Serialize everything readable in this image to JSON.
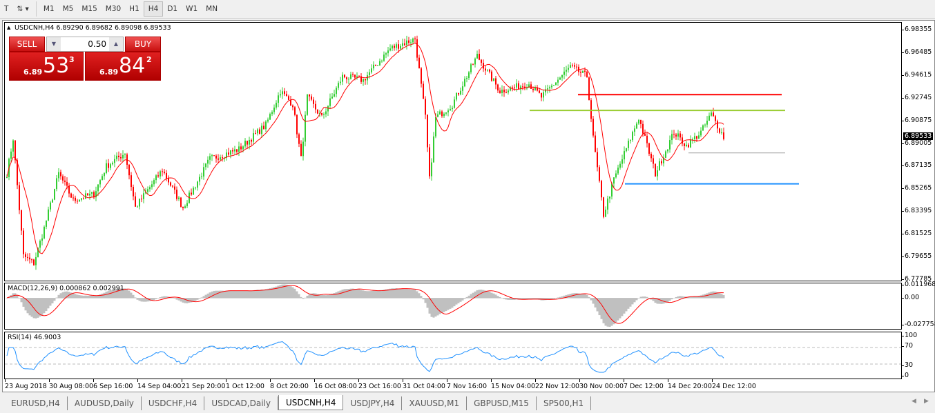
{
  "toolbar": {
    "timeframes": [
      "M1",
      "M5",
      "M15",
      "M30",
      "H1",
      "H4",
      "D1",
      "W1",
      "MN"
    ],
    "active": "H4"
  },
  "chart": {
    "title": "USDCNH,H4  6.89290 6.89682 6.89098 6.89533",
    "sell_label": "SELL",
    "buy_label": "BUY",
    "volume": "0.50",
    "sell_big": "6.89",
    "sell_main": "53",
    "sell_sup": "3",
    "buy_big": "6.89",
    "buy_main": "84",
    "buy_sup": "2",
    "price_ticks": [
      "6.98355",
      "6.96485",
      "6.94615",
      "6.92745",
      "6.90875",
      "6.89005",
      "6.87135",
      "6.85265",
      "6.83395",
      "6.81525",
      "6.79655",
      "6.77785"
    ],
    "current_price": "6.89533",
    "date_ticks": [
      "23 Aug 2018",
      "30 Aug 08:00",
      "6 Sep 16:00",
      "14 Sep 04:00",
      "21 Sep 20:00",
      "1 Oct 12:00",
      "8 Oct 20:00",
      "16 Oct 08:00",
      "23 Oct 16:00",
      "31 Oct 04:00",
      "7 Nov 16:00",
      "15 Nov 04:00",
      "22 Nov 12:00",
      "30 Nov 00:00",
      "7 Dec 12:00",
      "14 Dec 20:00",
      "24 Dec 12:00"
    ],
    "macd_title": "MACD(12,26,9) 0.000862 0.002991",
    "macd_ticks": [
      "0.011968",
      "0.00",
      "-0.027758"
    ],
    "rsi_title": "RSI(14) 46.9003",
    "rsi_ticks": [
      "100",
      "70",
      "30",
      "0"
    ],
    "colors": {
      "bull": "#32cd32",
      "bear": "#ff0000",
      "ma": "#ff0000",
      "rsi": "#1e90ff",
      "histogram": "#c0c0c0"
    },
    "horizontal_lines": [
      {
        "price": 6.93,
        "color": "#ff0000"
      },
      {
        "price": 6.917,
        "color": "#9acd32"
      },
      {
        "price": 6.882,
        "color": "#a0a0a0"
      },
      {
        "price": 6.8565,
        "color": "#1e90ff"
      }
    ]
  },
  "chart_data": {
    "type": "candlestick",
    "ylim": [
      6.77785,
      6.98355
    ],
    "price_path": [
      [
        0,
        6.865
      ],
      [
        3,
        6.894
      ],
      [
        8,
        6.797
      ],
      [
        13,
        6.791
      ],
      [
        18,
        6.82
      ],
      [
        25,
        6.865
      ],
      [
        32,
        6.843
      ],
      [
        42,
        6.848
      ],
      [
        48,
        6.871
      ],
      [
        57,
        6.882
      ],
      [
        62,
        6.837
      ],
      [
        75,
        6.868
      ],
      [
        85,
        6.837
      ],
      [
        98,
        6.877
      ],
      [
        112,
        6.885
      ],
      [
        125,
        6.905
      ],
      [
        132,
        6.933
      ],
      [
        138,
        6.922
      ],
      [
        142,
        6.877
      ],
      [
        145,
        6.928
      ],
      [
        152,
        6.911
      ],
      [
        162,
        6.945
      ],
      [
        172,
        6.942
      ],
      [
        185,
        6.968
      ],
      [
        197,
        6.976
      ],
      [
        202,
        6.911
      ],
      [
        204,
        6.86
      ],
      [
        207,
        6.911
      ],
      [
        215,
        6.922
      ],
      [
        227,
        6.962
      ],
      [
        238,
        6.933
      ],
      [
        252,
        6.939
      ],
      [
        258,
        6.928
      ],
      [
        272,
        6.953
      ],
      [
        280,
        6.945
      ],
      [
        283,
        6.894
      ],
      [
        288,
        6.831
      ],
      [
        293,
        6.86
      ],
      [
        305,
        6.911
      ],
      [
        313,
        6.865
      ],
      [
        322,
        6.899
      ],
      [
        328,
        6.888
      ],
      [
        335,
        6.899
      ],
      [
        340,
        6.914
      ],
      [
        346,
        6.895
      ]
    ]
  },
  "tabs": [
    "EURUSD,H4",
    "AUDUSD,Daily",
    "USDCHF,H4",
    "USDCAD,Daily",
    "USDCNH,H4",
    "USDJPY,H4",
    "XAUUSD,M1",
    "GBPUSD,M15",
    "SP500,H1"
  ],
  "active_tab": "USDCNH,H4"
}
